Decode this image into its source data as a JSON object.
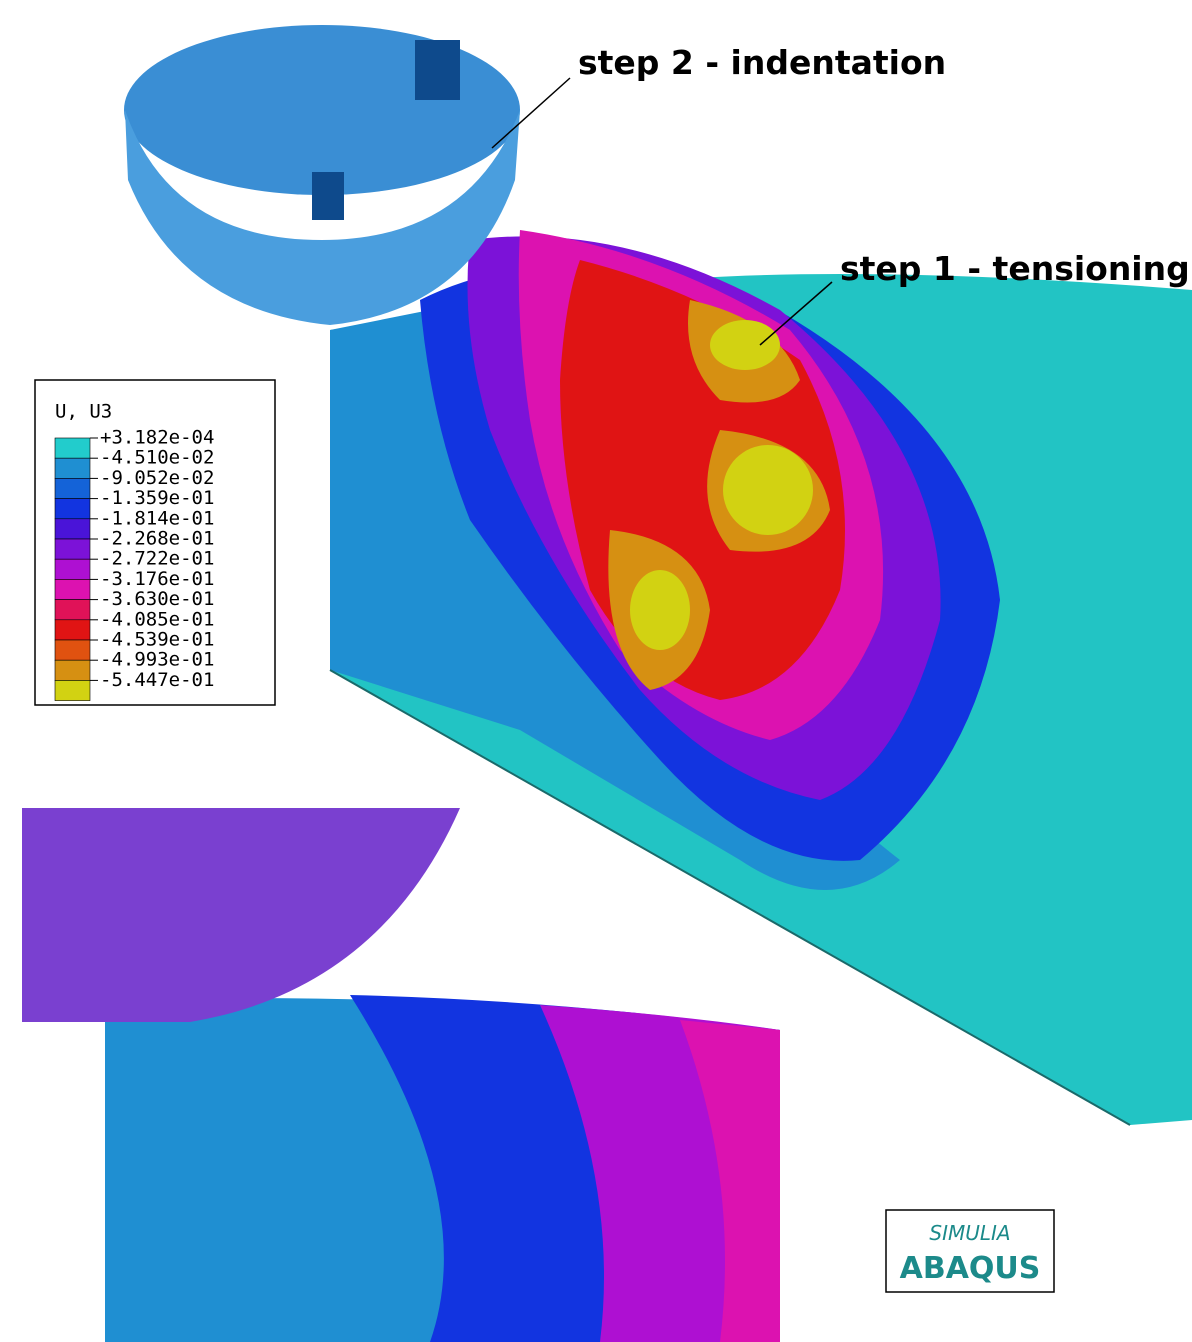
{
  "annotations": {
    "step2": "step 2 - indentation",
    "step1": "step 1 - tensioning"
  },
  "legend": {
    "title": "U, U3",
    "labels": [
      "+3.182e-04",
      "-4.510e-02",
      "-9.052e-02",
      "-1.359e-01",
      "-1.814e-01",
      "-2.268e-01",
      "-2.722e-01",
      "-3.176e-01",
      "-3.630e-01",
      "-4.085e-01",
      "-4.539e-01",
      "-4.993e-01",
      "-5.447e-01"
    ],
    "colors": [
      "#22cccc",
      "#1f8fd2",
      "#1463d8",
      "#1234e0",
      "#4a14d8",
      "#7c12d8",
      "#ae10d2",
      "#dc12b0",
      "#e01258",
      "#e01414",
      "#e05210",
      "#d69012",
      "#d2d212"
    ]
  },
  "logo": {
    "brand": "SIMULIA",
    "product": "ABAQUS"
  }
}
